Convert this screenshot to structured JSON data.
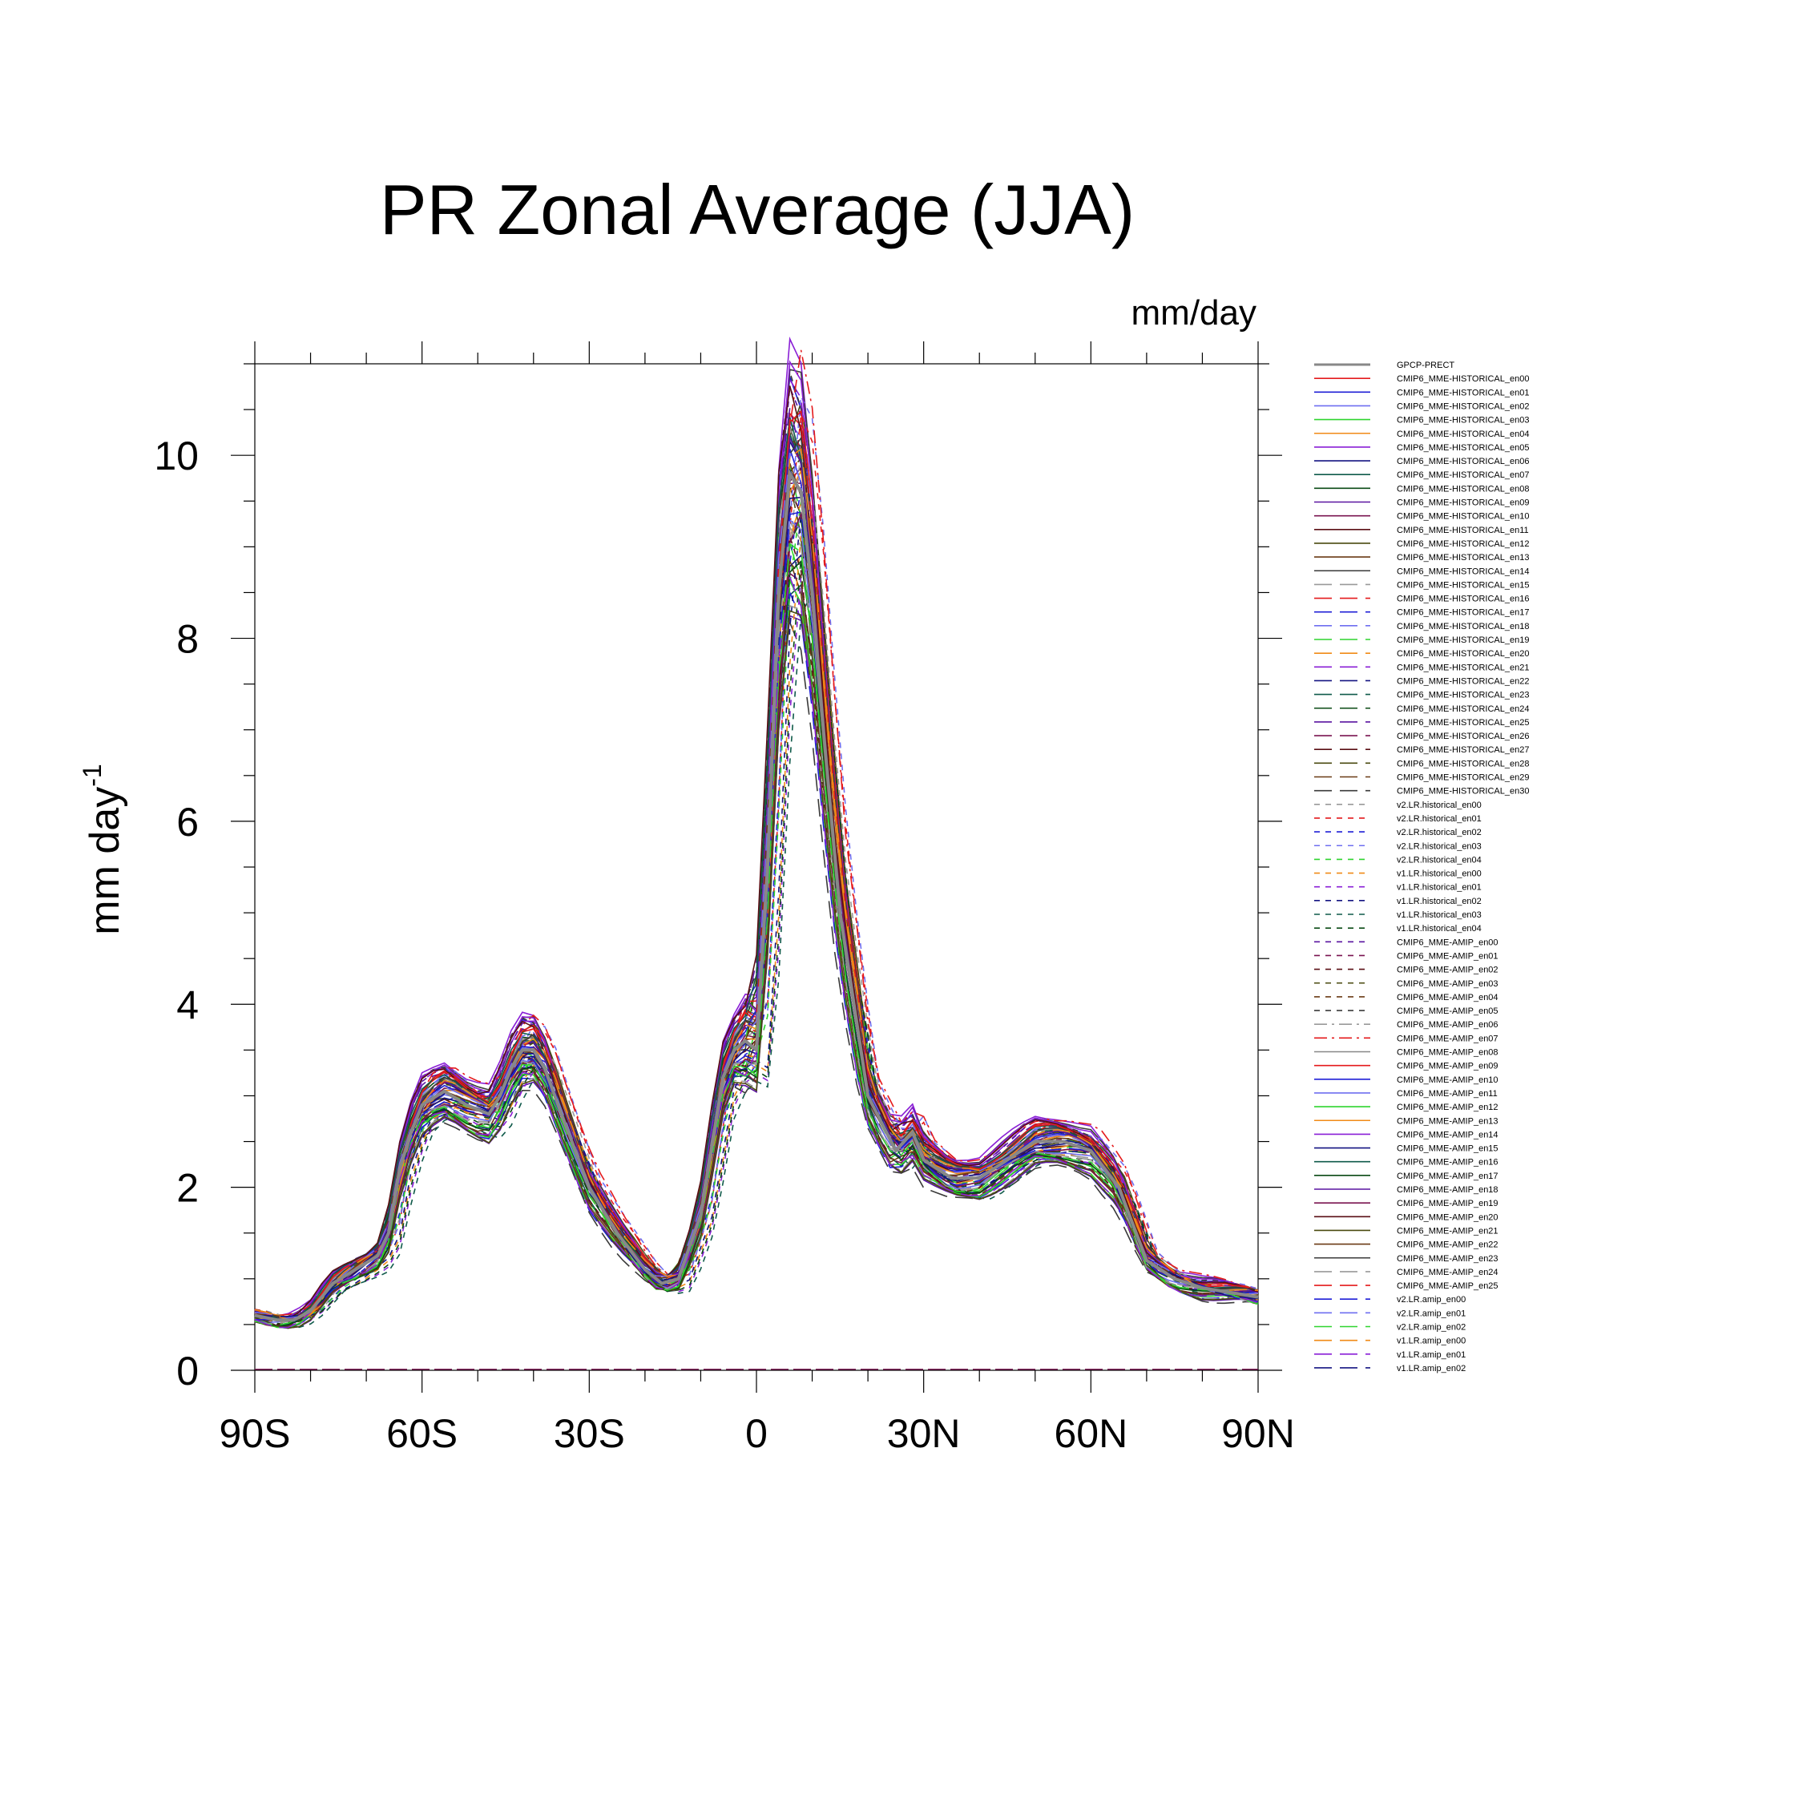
{
  "chart_data": {
    "type": "line",
    "title": "PR Zonal Average (JJA)",
    "units_label": "mm/day",
    "ylabel": "mm day",
    "ylabel_superscript": "-1",
    "xlabel": "",
    "x_range": [
      -90,
      90
    ],
    "ylim": [
      0,
      11
    ],
    "x_ticks": [
      {
        "value": -90,
        "label": "90S"
      },
      {
        "value": -60,
        "label": "60S"
      },
      {
        "value": -30,
        "label": "30S"
      },
      {
        "value": 0,
        "label": "0"
      },
      {
        "value": 30,
        "label": "30N"
      },
      {
        "value": 60,
        "label": "60N"
      },
      {
        "value": 90,
        "label": "90N"
      }
    ],
    "y_ticks": [
      {
        "value": 0,
        "label": "0"
      },
      {
        "value": 2,
        "label": "2"
      },
      {
        "value": 4,
        "label": "4"
      },
      {
        "value": 6,
        "label": "6"
      },
      {
        "value": 8,
        "label": "8"
      },
      {
        "value": 10,
        "label": "10"
      }
    ],
    "grid": false,
    "legend_position": "right",
    "reference_series": {
      "name": "GPCP-PRECT",
      "color": "#888888",
      "x": [
        -90,
        -86,
        -83,
        -80,
        -76,
        -72,
        -68,
        -66,
        -64,
        -62,
        -60,
        -56,
        -52,
        -48,
        -46,
        -44,
        -42,
        -40,
        -38,
        -35,
        -30,
        -25,
        -20,
        -17,
        -14,
        -10,
        -6,
        -4,
        -2,
        0,
        2,
        4,
        6,
        8,
        10,
        12,
        15,
        20,
        25,
        28,
        30,
        35,
        40,
        45,
        50,
        55,
        60,
        65,
        70,
        75,
        80,
        85,
        90
      ],
      "y": [
        0.6,
        0.55,
        0.55,
        0.65,
        0.95,
        1.1,
        1.25,
        1.5,
        2.2,
        2.6,
        2.9,
        3.05,
        2.9,
        2.8,
        3.0,
        3.3,
        3.5,
        3.5,
        3.3,
        2.8,
        2.0,
        1.5,
        1.1,
        0.95,
        1.0,
        1.7,
        3.2,
        3.5,
        3.6,
        3.5,
        5.5,
        8.5,
        9.8,
        9.6,
        8.5,
        7.0,
        5.0,
        3.0,
        2.4,
        2.6,
        2.3,
        2.1,
        2.1,
        2.3,
        2.5,
        2.5,
        2.4,
        2.0,
        1.2,
        1.0,
        0.9,
        0.85,
        0.8
      ]
    },
    "series": [
      {
        "name": "CMIP6_MME-HISTORICAL_en00",
        "color": "#e41a1c",
        "dash": "solid",
        "offset": 0.26,
        "shift": 0.1
      },
      {
        "name": "CMIP6_MME-HISTORICAL_en01",
        "color": "#1f1fd6",
        "dash": "solid",
        "offset": 0.38,
        "shift": -0.3
      },
      {
        "name": "CMIP6_MME-HISTORICAL_en02",
        "color": "#6f6ff0",
        "dash": "solid",
        "offset": 0.0,
        "shift": 0.3
      },
      {
        "name": "CMIP6_MME-HISTORICAL_en03",
        "color": "#2fd42f",
        "dash": "solid",
        "offset": -0.24,
        "shift": -0.6
      },
      {
        "name": "CMIP6_MME-HISTORICAL_en04",
        "color": "#f08a16",
        "dash": "solid",
        "offset": -0.12,
        "shift": 0.6
      },
      {
        "name": "CMIP6_MME-HISTORICAL_en05",
        "color": "#8a1fd6",
        "dash": "solid",
        "offset": 0.5,
        "shift": -0.1
      },
      {
        "name": "CMIP6_MME-HISTORICAL_en06",
        "color": "#141482",
        "dash": "solid",
        "offset": 0.12,
        "shift": 0.0
      },
      {
        "name": "CMIP6_MME-HISTORICAL_en07",
        "color": "#0f5a4a",
        "dash": "solid",
        "offset": -0.36,
        "shift": 0.4
      },
      {
        "name": "CMIP6_MME-HISTORICAL_en08",
        "color": "#0a4a14",
        "dash": "solid",
        "offset": 0.2,
        "shift": -0.4
      },
      {
        "name": "CMIP6_MME-HISTORICAL_en09",
        "color": "#5a14a0",
        "dash": "solid",
        "offset": -0.48,
        "shift": 0.2
      },
      {
        "name": "CMIP6_MME-HISTORICAL_en10",
        "color": "#7a1450",
        "dash": "solid",
        "offset": 0.08,
        "shift": 0.5
      },
      {
        "name": "CMIP6_MME-HISTORICAL_en11",
        "color": "#5a0f14",
        "dash": "solid",
        "offset": -0.06,
        "shift": -0.2
      },
      {
        "name": "CMIP6_MME-HISTORICAL_en12",
        "color": "#4a4a0f",
        "dash": "solid",
        "offset": 0.32,
        "shift": 0.7
      },
      {
        "name": "CMIP6_MME-HISTORICAL_en13",
        "color": "#6a3a14",
        "dash": "solid",
        "offset": -0.3,
        "shift": -0.5
      },
      {
        "name": "CMIP6_MME-HISTORICAL_en14",
        "color": "#3a3a3a",
        "dash": "solid",
        "offset": 0.44,
        "shift": 0.2
      },
      {
        "name": "CMIP6_MME-HISTORICAL_en15",
        "color": "#999999",
        "dash": "longdash",
        "offset": -0.18,
        "shift": -0.1
      },
      {
        "name": "CMIP6_MME-HISTORICAL_en16",
        "color": "#e41a1c",
        "dash": "longdash",
        "offset": 0.14,
        "shift": 0.3
      },
      {
        "name": "CMIP6_MME-HISTORICAL_en17",
        "color": "#1f1fd6",
        "dash": "longdash",
        "offset": -0.42,
        "shift": -0.3
      },
      {
        "name": "CMIP6_MME-HISTORICAL_en18",
        "color": "#6f6ff0",
        "dash": "longdash",
        "offset": 0.22,
        "shift": 0.1
      },
      {
        "name": "CMIP6_MME-HISTORICAL_en19",
        "color": "#2fd42f",
        "dash": "longdash",
        "offset": 0.04,
        "shift": -0.7
      },
      {
        "name": "CMIP6_MME-HISTORICAL_en20",
        "color": "#f08a16",
        "dash": "longdash",
        "offset": -0.08,
        "shift": 0.8
      },
      {
        "name": "CMIP6_MME-HISTORICAL_en21",
        "color": "#8a1fd6",
        "dash": "longdash",
        "offset": 0.36,
        "shift": 0.0
      },
      {
        "name": "CMIP6_MME-HISTORICAL_en22",
        "color": "#141482",
        "dash": "longdash",
        "offset": -0.26,
        "shift": 0.4
      },
      {
        "name": "CMIP6_MME-HISTORICAL_en23",
        "color": "#0f5a4a",
        "dash": "longdash",
        "offset": 0.16,
        "shift": -0.2
      },
      {
        "name": "CMIP6_MME-HISTORICAL_en24",
        "color": "#0a4a14",
        "dash": "longdash",
        "offset": -0.14,
        "shift": 0.6
      },
      {
        "name": "CMIP6_MME-HISTORICAL_en25",
        "color": "#5a14a0",
        "dash": "longdash",
        "offset": 0.28,
        "shift": -0.6
      },
      {
        "name": "CMIP6_MME-HISTORICAL_en26",
        "color": "#7a1450",
        "dash": "longdash",
        "offset": -0.34,
        "shift": 0.1
      },
      {
        "name": "CMIP6_MME-HISTORICAL_en27",
        "color": "#5a0f14",
        "dash": "longdash",
        "offset": 0.06,
        "shift": 0.9
      },
      {
        "name": "CMIP6_MME-HISTORICAL_en28",
        "color": "#4a4a0f",
        "dash": "longdash",
        "offset": -0.02,
        "shift": -0.8
      },
      {
        "name": "CMIP6_MME-HISTORICAL_en29",
        "color": "#6a3a14",
        "dash": "longdash",
        "offset": 0.18,
        "shift": 0.2
      },
      {
        "name": "CMIP6_MME-HISTORICAL_en30",
        "color": "#3a3a3a",
        "dash": "longdash",
        "offset": -0.54,
        "shift": -0.3
      },
      {
        "name": "v2.LR.historical_en00",
        "color": "#999999",
        "dash": "dash",
        "offset": 0.1,
        "shift": 1.6
      },
      {
        "name": "v2.LR.historical_en01",
        "color": "#e41a1c",
        "dash": "dash",
        "offset": 0.24,
        "shift": 1.8
      },
      {
        "name": "v2.LR.historical_en02",
        "color": "#1f1fd6",
        "dash": "dash",
        "offset": -0.04,
        "shift": 1.4
      },
      {
        "name": "v2.LR.historical_en03",
        "color": "#6f6ff0",
        "dash": "dash",
        "offset": 0.3,
        "shift": 1.9
      },
      {
        "name": "v2.LR.historical_en04",
        "color": "#2fd42f",
        "dash": "dash",
        "offset": -0.1,
        "shift": 1.5
      },
      {
        "name": "v1.LR.historical_en00",
        "color": "#f08a16",
        "dash": "dash",
        "offset": -0.2,
        "shift": 2.2
      },
      {
        "name": "v1.LR.historical_en01",
        "color": "#8a1fd6",
        "dash": "dash",
        "offset": -0.3,
        "shift": 2.4
      },
      {
        "name": "v1.LR.historical_en02",
        "color": "#141482",
        "dash": "dash",
        "offset": -0.16,
        "shift": 2.0
      },
      {
        "name": "v1.LR.historical_en03",
        "color": "#0f5a4a",
        "dash": "dash",
        "offset": -0.4,
        "shift": 2.6
      },
      {
        "name": "v1.LR.historical_en04",
        "color": "#0a4a14",
        "dash": "dash",
        "offset": -0.26,
        "shift": 2.3
      },
      {
        "name": "CMIP6_MME-AMIP_en00",
        "color": "#5a14a0",
        "dash": "dash",
        "offset": 0.34,
        "shift": -0.2
      },
      {
        "name": "CMIP6_MME-AMIP_en01",
        "color": "#7a1450",
        "dash": "dash",
        "offset": 0.02,
        "shift": 0.3
      },
      {
        "name": "CMIP6_MME-AMIP_en02",
        "color": "#5a0f14",
        "dash": "dash",
        "offset": -0.22,
        "shift": -0.5
      },
      {
        "name": "CMIP6_MME-AMIP_en03",
        "color": "#4a4a0f",
        "dash": "dash",
        "offset": 0.12,
        "shift": 0.5
      },
      {
        "name": "CMIP6_MME-AMIP_en04",
        "color": "#6a3a14",
        "dash": "dash",
        "offset": -0.32,
        "shift": 0.0
      },
      {
        "name": "CMIP6_MME-AMIP_en05",
        "color": "#3a3a3a",
        "dash": "dash",
        "offset": 0.4,
        "shift": -0.4
      },
      {
        "name": "CMIP6_MME-AMIP_en06",
        "color": "#999999",
        "dash": "dashdot",
        "offset": -0.44,
        "shift": 0.2
      },
      {
        "name": "CMIP6_MME-AMIP_en07",
        "color": "#e41a1c",
        "dash": "dashdot",
        "offset": 0.48,
        "shift": 1.2
      },
      {
        "name": "CMIP6_MME-AMIP_en08",
        "color": "#888888",
        "dash": "solid",
        "offset": 0.18,
        "shift": -0.1
      },
      {
        "name": "CMIP6_MME-AMIP_en09",
        "color": "#e41a1c",
        "dash": "solid",
        "offset": 0.3,
        "shift": 0.4
      },
      {
        "name": "CMIP6_MME-AMIP_en10",
        "color": "#1f1fd6",
        "dash": "solid",
        "offset": 0.1,
        "shift": -0.3
      },
      {
        "name": "CMIP6_MME-AMIP_en11",
        "color": "#6f6ff0",
        "dash": "solid",
        "offset": -0.16,
        "shift": 0.1
      },
      {
        "name": "CMIP6_MME-AMIP_en12",
        "color": "#2fd42f",
        "dash": "solid",
        "offset": -0.38,
        "shift": -0.2
      },
      {
        "name": "CMIP6_MME-AMIP_en13",
        "color": "#f08a16",
        "dash": "solid",
        "offset": 0.06,
        "shift": 0.6
      },
      {
        "name": "CMIP6_MME-AMIP_en14",
        "color": "#8a1fd6",
        "dash": "solid",
        "offset": 0.42,
        "shift": 0.0
      },
      {
        "name": "CMIP6_MME-AMIP_en15",
        "color": "#141482",
        "dash": "solid",
        "offset": -0.04,
        "shift": 0.3
      },
      {
        "name": "CMIP6_MME-AMIP_en16",
        "color": "#0f5a4a",
        "dash": "solid",
        "offset": 0.24,
        "shift": -0.5
      },
      {
        "name": "CMIP6_MME-AMIP_en17",
        "color": "#0a4a14",
        "dash": "solid",
        "offset": -0.28,
        "shift": 0.4
      },
      {
        "name": "CMIP6_MME-AMIP_en18",
        "color": "#5a14a0",
        "dash": "solid",
        "offset": 0.14,
        "shift": -0.1
      },
      {
        "name": "CMIP6_MME-AMIP_en19",
        "color": "#7a1450",
        "dash": "solid",
        "offset": -0.12,
        "shift": 0.7
      },
      {
        "name": "CMIP6_MME-AMIP_en20",
        "color": "#5a0f14",
        "dash": "solid",
        "offset": 0.36,
        "shift": -0.6
      },
      {
        "name": "CMIP6_MME-AMIP_en21",
        "color": "#4a4a0f",
        "dash": "solid",
        "offset": -0.46,
        "shift": 0.2
      },
      {
        "name": "CMIP6_MME-AMIP_en22",
        "color": "#6a3a14",
        "dash": "solid",
        "offset": 0.04,
        "shift": -0.3
      },
      {
        "name": "CMIP6_MME-AMIP_en23",
        "color": "#3a3a3a",
        "dash": "solid",
        "offset": 0.2,
        "shift": 0.5
      },
      {
        "name": "CMIP6_MME-AMIP_en24",
        "color": "#999999",
        "dash": "longdash",
        "offset": -0.2,
        "shift": -0.1
      },
      {
        "name": "CMIP6_MME-AMIP_en25",
        "color": "#e41a1c",
        "dash": "longdash",
        "offset": 0.26,
        "shift": 0.2
      },
      {
        "name": "v2.LR.amip_en00",
        "color": "#1f1fd6",
        "dash": "longdash",
        "offset": -0.1,
        "shift": 0.3
      },
      {
        "name": "v2.LR.amip_en01",
        "color": "#6f6ff0",
        "dash": "longdash",
        "offset": 0.08,
        "shift": -0.2
      },
      {
        "name": "v2.LR.amip_en02",
        "color": "#2fd42f",
        "dash": "longdash",
        "offset": -0.24,
        "shift": 0.1
      },
      {
        "name": "v1.LR.amip_en00",
        "color": "#f08a16",
        "dash": "longdash",
        "offset": 0.16,
        "shift": 0.4
      },
      {
        "name": "v1.LR.amip_en01",
        "color": "#8a1fd6",
        "dash": "longdash",
        "offset": -0.36,
        "shift": -0.4
      },
      {
        "name": "v1.LR.amip_en02",
        "color": "#141482",
        "dash": "longdash",
        "offset": 0.0,
        "shift": 0.0
      }
    ]
  }
}
